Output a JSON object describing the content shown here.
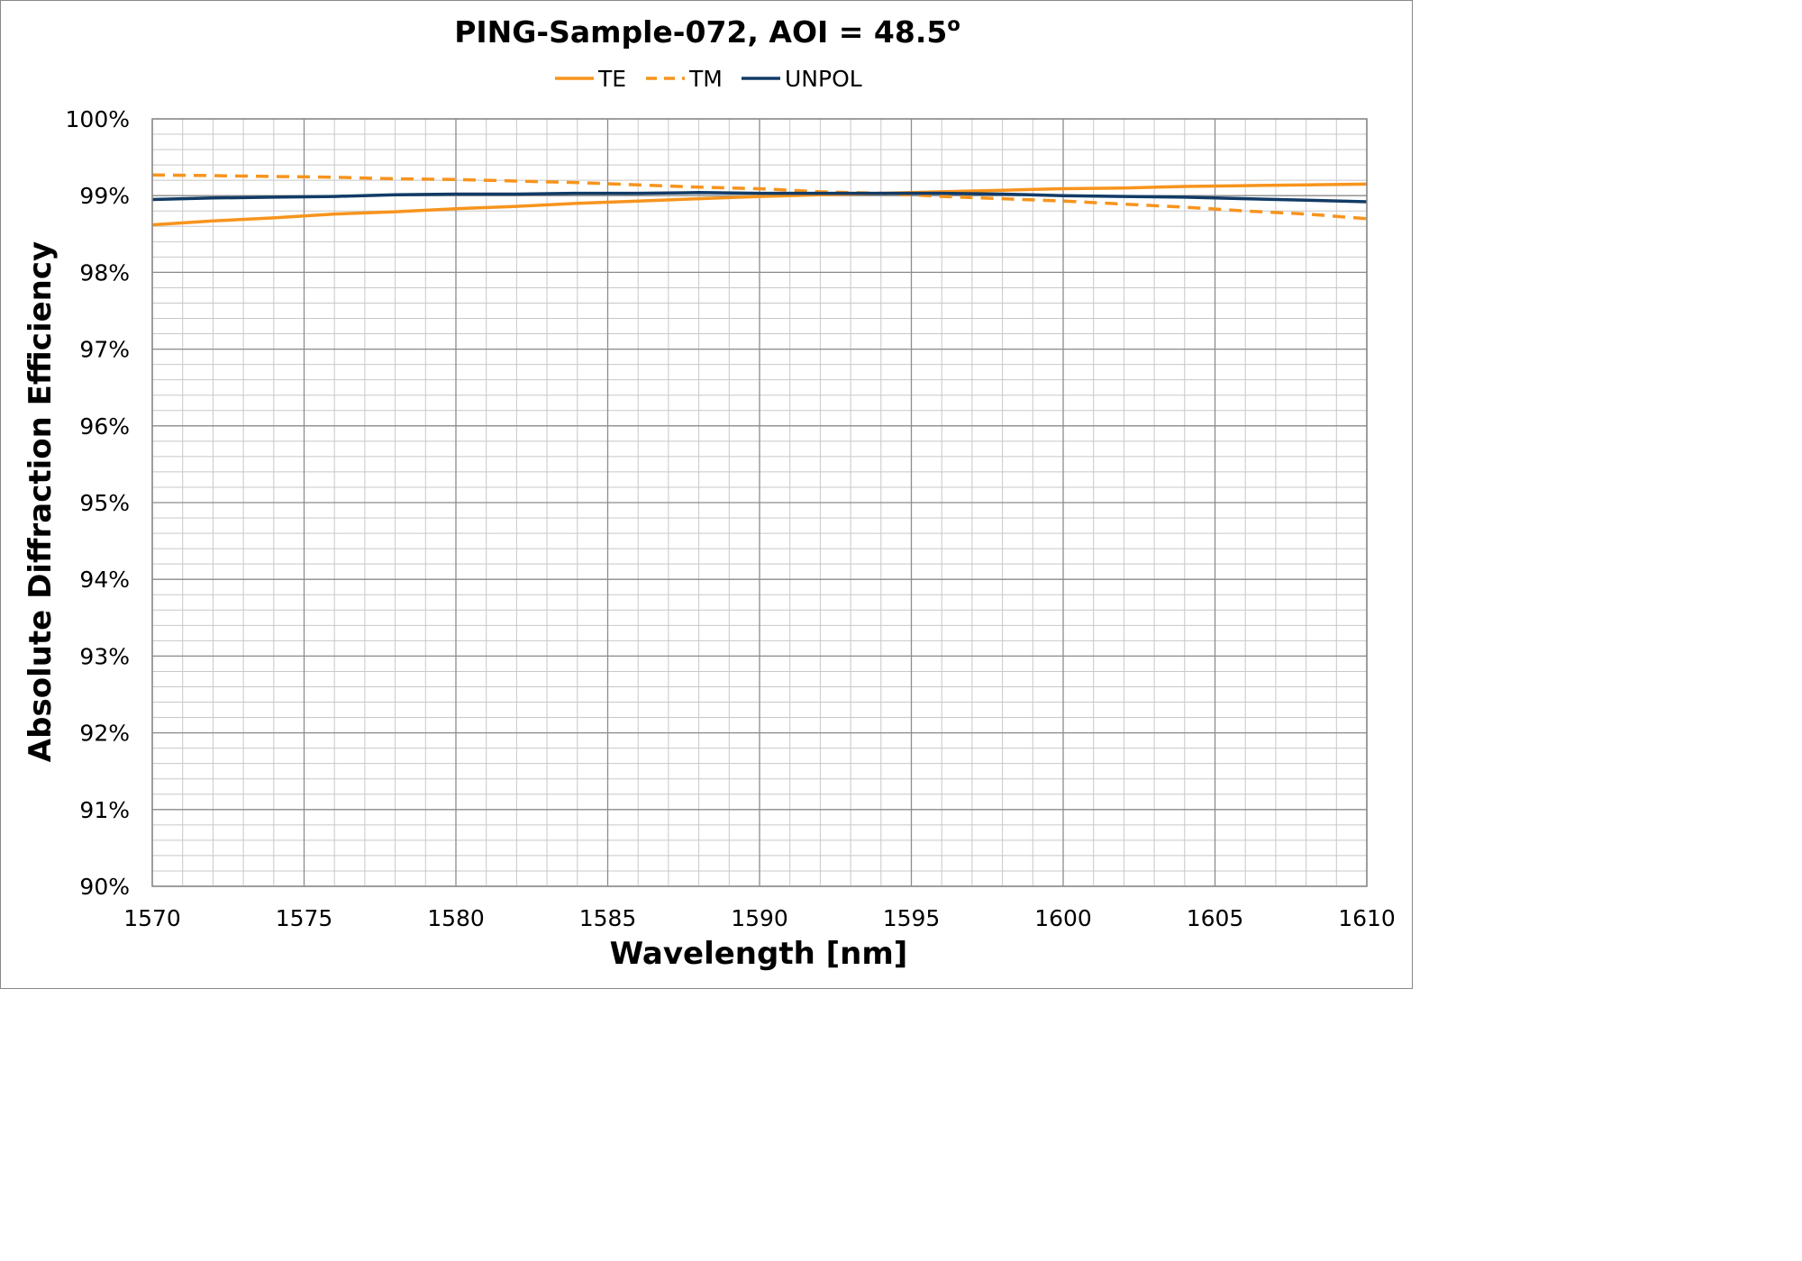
{
  "chart_data": {
    "type": "line",
    "title": "PING-Sample-072, AOI = 48.5",
    "title_superscript": "o",
    "xlabel": "Wavelength [nm]",
    "ylabel": "Absolute Diffraction Efficiency",
    "xlim": [
      1570,
      1610
    ],
    "ylim": [
      0.9,
      1.0
    ],
    "x_ticks": [
      1570,
      1575,
      1580,
      1585,
      1590,
      1595,
      1600,
      1605,
      1610
    ],
    "x_tick_labels": [
      "1570",
      "1575",
      "1580",
      "1585",
      "1590",
      "1595",
      "1600",
      "1605",
      "1610"
    ],
    "y_ticks": [
      0.9,
      0.91,
      0.92,
      0.93,
      0.94,
      0.95,
      0.96,
      0.97,
      0.98,
      0.99,
      1.0
    ],
    "y_tick_labels": [
      "90%",
      "91%",
      "92%",
      "93%",
      "94%",
      "95%",
      "96%",
      "97%",
      "98%",
      "99%",
      "100%"
    ],
    "x_minor_step": 1,
    "y_minor_step": 0.002,
    "grid": true,
    "legend_position": "top-center",
    "x": [
      1570,
      1572,
      1574,
      1576,
      1578,
      1580,
      1582,
      1584,
      1586,
      1588,
      1590,
      1592,
      1594,
      1596,
      1598,
      1600,
      1602,
      1604,
      1606,
      1608,
      1610
    ],
    "series": [
      {
        "name": "TE",
        "color": "#F7941D",
        "dash": "solid",
        "values": [
          0.9862,
          0.9867,
          0.9871,
          0.9876,
          0.9879,
          0.9883,
          0.9886,
          0.989,
          0.9893,
          0.9896,
          0.9899,
          0.9901,
          0.9903,
          0.9905,
          0.9907,
          0.9909,
          0.991,
          0.9912,
          0.9913,
          0.9914,
          0.9915
        ]
      },
      {
        "name": "TM",
        "color": "#F7941D",
        "dash": "dashed",
        "values": [
          0.9927,
          0.9926,
          0.9925,
          0.9924,
          0.9922,
          0.9921,
          0.9919,
          0.9917,
          0.9914,
          0.9911,
          0.9909,
          0.9905,
          0.9903,
          0.9899,
          0.9896,
          0.9893,
          0.9889,
          0.9885,
          0.988,
          0.9876,
          0.987
        ]
      },
      {
        "name": "UNPOL",
        "color": "#123B66",
        "dash": "solid",
        "values": [
          0.9895,
          0.9897,
          0.9898,
          0.9899,
          0.9901,
          0.9902,
          0.9902,
          0.9903,
          0.9903,
          0.9904,
          0.9903,
          0.9903,
          0.9903,
          0.9903,
          0.9902,
          0.99,
          0.9899,
          0.9898,
          0.9896,
          0.9894,
          0.9892
        ]
      }
    ]
  }
}
